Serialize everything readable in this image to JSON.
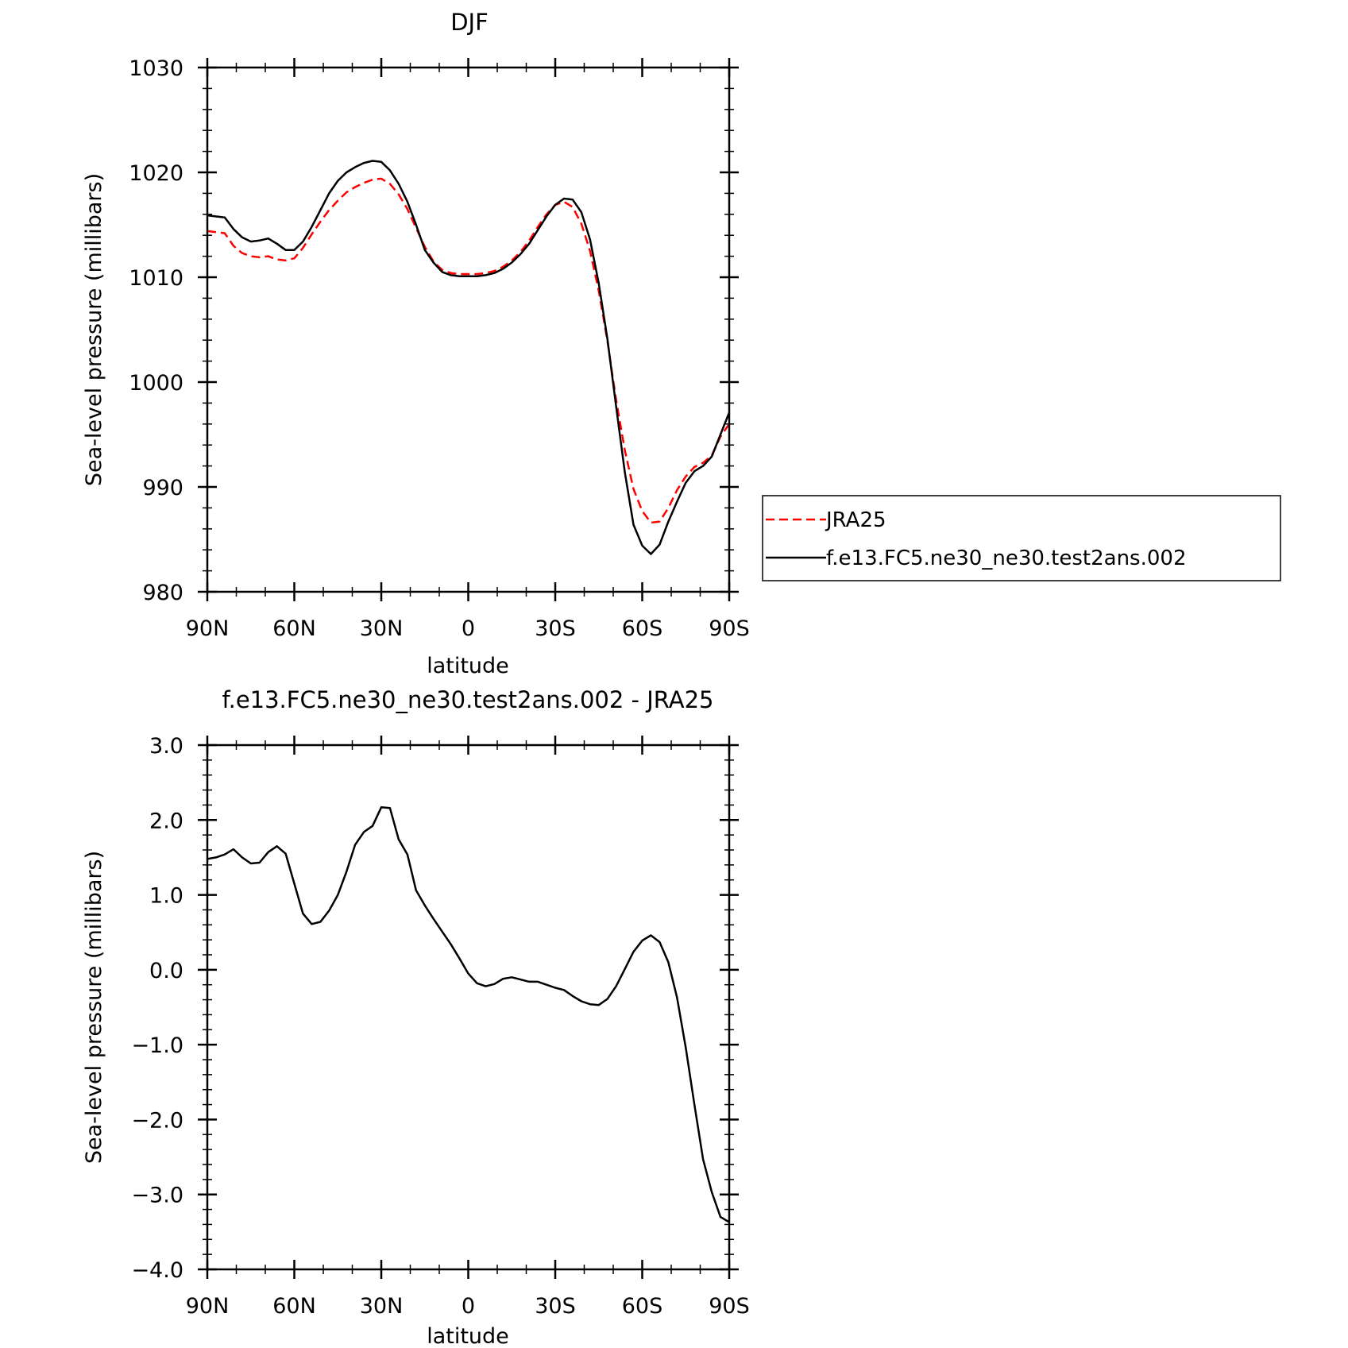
{
  "chart_data": [
    {
      "type": "line",
      "title": "DJF",
      "xlabel": "latitude",
      "ylabel": "Sea-level pressure (millibars)",
      "xlim": [
        90,
        -90
      ],
      "ylim": [
        980,
        1030
      ],
      "yticks": [
        980,
        990,
        1000,
        1010,
        1020,
        1030
      ],
      "xticks": [
        90,
        60,
        30,
        0,
        -30,
        -60,
        -90
      ],
      "xtick_labels": [
        "90N",
        "60N",
        "30N",
        "0",
        "30S",
        "60S",
        "90S"
      ],
      "legend": {
        "placement": "right",
        "border": true
      },
      "series": [
        {
          "name": "JRA25",
          "color": "#ff0000",
          "dash": true,
          "x": [
            90,
            84,
            81,
            78,
            75,
            72,
            69,
            66,
            63,
            60,
            57,
            54,
            51,
            48,
            45,
            42,
            39,
            36,
            33,
            30,
            27,
            24,
            21,
            18,
            15,
            12,
            9,
            6,
            3,
            0,
            -3,
            -6,
            -9,
            -12,
            -15,
            -18,
            -21,
            -24,
            -27,
            -30,
            -33,
            -36,
            -39,
            -42,
            -45,
            -48,
            -51,
            -54,
            -57,
            -60,
            -63,
            -66,
            -69,
            -72,
            -75,
            -78,
            -81,
            -84,
            -87,
            -90
          ],
          "y": [
            1014.4,
            1014.2,
            1013.0,
            1012.3,
            1012.0,
            1011.9,
            1012.0,
            1011.7,
            1011.6,
            1011.8,
            1012.8,
            1014.1,
            1015.3,
            1016.4,
            1017.3,
            1018.1,
            1018.6,
            1019.0,
            1019.3,
            1019.4,
            1018.9,
            1017.9,
            1016.5,
            1014.7,
            1012.9,
            1011.5,
            1010.7,
            1010.4,
            1010.3,
            1010.3,
            1010.3,
            1010.4,
            1010.6,
            1011.0,
            1011.6,
            1012.4,
            1013.5,
            1014.8,
            1016.0,
            1016.9,
            1017.2,
            1016.7,
            1015.1,
            1012.5,
            1008.7,
            1003.9,
            998.3,
            993.5,
            989.8,
            987.7,
            986.6,
            986.7,
            988.0,
            989.7,
            991.0,
            991.9,
            992.3,
            993.0,
            994.8,
            996.0
          ]
        },
        {
          "name": "f.e13.FC5.ne30_ne30.test2ans.002",
          "color": "#000000",
          "dash": false,
          "x": [
            90,
            84,
            81,
            78,
            75,
            72,
            69,
            66,
            63,
            60,
            57,
            54,
            51,
            48,
            45,
            42,
            39,
            36,
            33,
            30,
            27,
            24,
            21,
            18,
            15,
            12,
            9,
            6,
            3,
            0,
            -3,
            -6,
            -9,
            -12,
            -15,
            -18,
            -21,
            -24,
            -27,
            -30,
            -33,
            -36,
            -39,
            -42,
            -45,
            -48,
            -51,
            -54,
            -57,
            -60,
            -63,
            -66,
            -69,
            -72,
            -75,
            -78,
            -81,
            -84,
            -87,
            -90
          ],
          "y": [
            1015.9,
            1015.7,
            1014.6,
            1013.8,
            1013.4,
            1013.5,
            1013.7,
            1013.2,
            1012.6,
            1012.6,
            1013.4,
            1014.8,
            1016.4,
            1018.0,
            1019.2,
            1020.0,
            1020.5,
            1020.9,
            1021.1,
            1021.0,
            1020.2,
            1018.9,
            1017.2,
            1015.0,
            1012.6,
            1011.4,
            1010.5,
            1010.2,
            1010.1,
            1010.1,
            1010.1,
            1010.2,
            1010.4,
            1010.8,
            1011.4,
            1012.2,
            1013.2,
            1014.5,
            1015.8,
            1016.9,
            1017.5,
            1017.4,
            1016.2,
            1013.6,
            1009.4,
            1004.1,
            997.7,
            991.4,
            986.4,
            984.4,
            983.6,
            984.5,
            986.7,
            988.6,
            990.4,
            991.5,
            992.0,
            992.9,
            995.0,
            997.1
          ]
        }
      ]
    },
    {
      "type": "line",
      "title": "f.e13.FC5.ne30_ne30.test2ans.002 - JRA25",
      "xlabel": "latitude",
      "ylabel": "Sea-level pressure (millibars)",
      "xlim": [
        90,
        -90
      ],
      "ylim": [
        -4.0,
        3.0
      ],
      "yticks": [
        -4.0,
        -3.0,
        -2.0,
        -1.0,
        0.0,
        1.0,
        2.0,
        3.0
      ],
      "ytick_labels": [
        "−4.0",
        "−3.0",
        "−2.0",
        "−1.0",
        "0.0",
        "1.0",
        "2.0",
        "3.0"
      ],
      "xticks": [
        90,
        60,
        30,
        0,
        -30,
        -60,
        -90
      ],
      "xtick_labels": [
        "90N",
        "60N",
        "30N",
        "0",
        "30S",
        "60S",
        "90S"
      ],
      "series": [
        {
          "color": "#000000",
          "x": [
            90,
            87,
            84,
            81,
            78,
            75,
            72,
            69,
            66,
            63,
            60,
            57,
            54,
            51,
            48,
            45,
            42,
            39,
            36,
            33,
            30,
            27,
            24,
            21,
            18,
            15,
            12,
            9,
            6,
            3,
            0,
            -3,
            -6,
            -9,
            -12,
            -15,
            -18,
            -21,
            -24,
            -27,
            -30,
            -33,
            -36,
            -39,
            -42,
            -45,
            -48,
            -51,
            -54,
            -57,
            -60,
            -63,
            -66,
            -69,
            -72,
            -75,
            -78,
            -81,
            -84,
            -87,
            -90
          ],
          "y": [
            1.48,
            1.5,
            1.54,
            1.61,
            1.5,
            1.42,
            1.43,
            1.57,
            1.65,
            1.55,
            1.15,
            0.75,
            0.61,
            0.64,
            0.79,
            1.0,
            1.31,
            1.67,
            1.84,
            1.92,
            2.17,
            2.16,
            1.74,
            1.54,
            1.06,
            0.86,
            0.68,
            0.51,
            0.34,
            0.15,
            -0.05,
            -0.18,
            -0.22,
            -0.19,
            -0.12,
            -0.1,
            -0.13,
            -0.16,
            -0.16,
            -0.2,
            -0.24,
            -0.27,
            -0.35,
            -0.42,
            -0.46,
            -0.47,
            -0.39,
            -0.22,
            0.01,
            0.24,
            0.39,
            0.46,
            0.37,
            0.1,
            -0.37,
            -1.04,
            -1.8,
            -2.53,
            -2.97,
            -3.3,
            -3.37
          ]
        }
      ]
    }
  ]
}
